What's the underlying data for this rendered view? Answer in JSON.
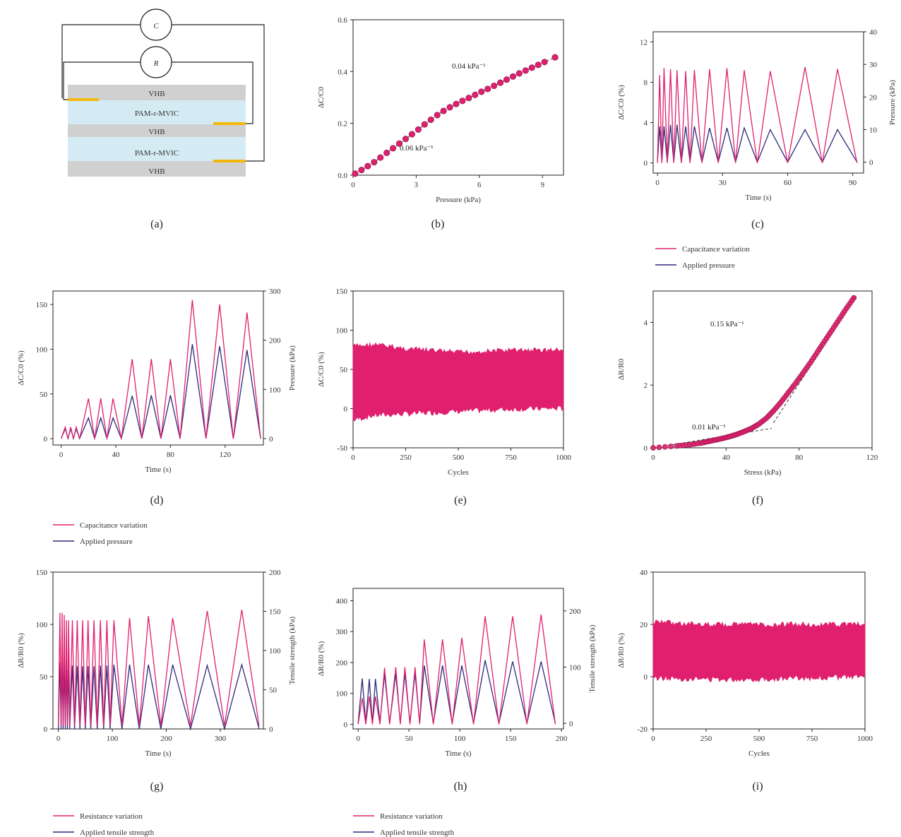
{
  "colors": {
    "magenta": "#e0206f",
    "navy": "#2b2a7a",
    "gold": "#f2b90c",
    "vhb": "#cfcfcf",
    "hydrogel": "#d4ebf4"
  },
  "schematic": {
    "meter_c": "C",
    "meter_r": "R",
    "layers": [
      "VHB",
      "PAM-r-MVIC",
      "VHB",
      "PAM-r-MVIC",
      "VHB"
    ]
  },
  "legends": {
    "c": [
      "Capacitance variation",
      "Applied pressure"
    ],
    "d": [
      "Capacitance variation",
      "Applied pressure"
    ],
    "g": [
      "Resistance variation",
      "Applied tensile strength"
    ],
    "h": [
      "Resistance variation",
      "Applied tensile strength"
    ]
  },
  "chart_data": [
    {
      "id": "a",
      "panel_label": "(a)",
      "type": "diagram"
    },
    {
      "id": "b",
      "panel_label": "(b)",
      "type": "scatter",
      "xlabel": "Pressure (kPa)",
      "ylabel": "ΔC/C0",
      "xlim": [
        0,
        10
      ],
      "ylim": [
        0,
        0.6
      ],
      "xticks": [
        0,
        3,
        6,
        9
      ],
      "yticks": [
        0.0,
        0.2,
        0.4,
        0.6
      ],
      "x": [
        0.1,
        0.4,
        0.7,
        1.0,
        1.3,
        1.6,
        1.9,
        2.2,
        2.5,
        2.8,
        3.1,
        3.4,
        3.7,
        4.0,
        4.3,
        4.6,
        4.9,
        5.2,
        5.5,
        5.8,
        6.1,
        6.4,
        6.7,
        7.0,
        7.3,
        7.6,
        7.9,
        8.2,
        8.5,
        8.8,
        9.1,
        9.6
      ],
      "y": [
        0.006,
        0.02,
        0.035,
        0.05,
        0.068,
        0.086,
        0.104,
        0.122,
        0.14,
        0.158,
        0.176,
        0.196,
        0.214,
        0.232,
        0.248,
        0.262,
        0.275,
        0.287,
        0.298,
        0.31,
        0.322,
        0.333,
        0.345,
        0.357,
        0.369,
        0.381,
        0.393,
        0.404,
        0.415,
        0.426,
        0.437,
        0.455
      ],
      "annotations": [
        "0.04 kPa⁻¹",
        "0.06 kPa⁻¹"
      ]
    },
    {
      "id": "c",
      "panel_label": "(c)",
      "type": "line",
      "xlabel": "Time (s)",
      "ylabel": "ΔC/C0 (%)",
      "y2label": "Pressure (kPa)",
      "xlim": [
        -2,
        95
      ],
      "ylim": [
        -1,
        13
      ],
      "y2lim": [
        -3.33,
        40
      ],
      "xticks": [
        0,
        30,
        60,
        90
      ],
      "yticks": [
        0,
        4,
        8,
        12
      ],
      "y2ticks": [
        0,
        10,
        20,
        30,
        40
      ],
      "peaks_x": [
        1,
        3,
        6,
        9,
        13,
        17,
        24,
        32,
        40,
        52,
        68,
        83
      ],
      "valleys_x": [
        0,
        2,
        4.5,
        7.5,
        11,
        15,
        20.5,
        28,
        36,
        46,
        60,
        76,
        92
      ],
      "series": [
        {
          "name": "Capacitance variation",
          "axis": "left",
          "peaks_y": [
            8.7,
            9.4,
            9.3,
            9.2,
            9.1,
            9.2,
            9.3,
            9.4,
            9.2,
            9.1,
            9.5,
            9.3
          ],
          "valley_y": 0
        },
        {
          "name": "Applied pressure",
          "axis": "right",
          "peaks_y": [
            11,
            11,
            11.5,
            11.5,
            11,
            11,
            10.5,
            10.5,
            10.5,
            10,
            10,
            10
          ],
          "valley_y": 0
        }
      ]
    },
    {
      "id": "d",
      "panel_label": "(d)",
      "type": "line",
      "xlabel": "Time (s)",
      "ylabel": "ΔC/C0 (%)",
      "y2label": "Pressure (kPa)",
      "xlim": [
        -6,
        148
      ],
      "ylim": [
        -7,
        165
      ],
      "y2lim": [
        -13,
        300
      ],
      "xticks": [
        0,
        40,
        80,
        120
      ],
      "yticks": [
        0,
        50,
        100,
        150
      ],
      "y2ticks": [
        0,
        100,
        200,
        300
      ],
      "peaks_x": [
        3,
        7,
        11,
        20,
        29,
        38,
        52,
        66,
        80,
        96,
        116,
        136
      ],
      "valleys_x": [
        0,
        5,
        9,
        13.5,
        24.5,
        33.5,
        44,
        59,
        73,
        87,
        106,
        126,
        146
      ],
      "series": [
        {
          "name": "Capacitance variation",
          "axis": "left",
          "peaks_y": [
            13,
            13,
            13,
            45,
            45,
            45,
            89,
            89,
            89,
            155,
            150,
            141
          ],
          "valley_y": 0
        },
        {
          "name": "Applied pressure",
          "axis": "right",
          "peaks_y": [
            20,
            20,
            20,
            42,
            42,
            42,
            87,
            88,
            88,
            192,
            188,
            180
          ],
          "valley_y": 0
        }
      ]
    },
    {
      "id": "e",
      "panel_label": "(e)",
      "type": "area",
      "xlabel": "Cycles",
      "ylabel": "ΔC/C0 (%)",
      "xlim": [
        0,
        1000
      ],
      "ylim": [
        -50,
        150
      ],
      "xticks": [
        0,
        250,
        500,
        750,
        1000
      ],
      "yticks": [
        -50,
        0,
        50,
        100,
        150
      ],
      "upper_x": [
        0,
        100,
        250,
        500,
        750,
        1000
      ],
      "upper_y": [
        83,
        85,
        80,
        75,
        78,
        78
      ],
      "lower_x": [
        0,
        100,
        250,
        500,
        750,
        1000
      ],
      "lower_y": [
        -18,
        -12,
        -10,
        -7,
        -4,
        -3
      ]
    },
    {
      "id": "f",
      "panel_label": "(f)",
      "type": "scatter",
      "xlabel": "Stress (kPa)",
      "ylabel": "ΔR/R0",
      "xlim": [
        0,
        120
      ],
      "ylim": [
        0,
        5
      ],
      "xticks": [
        0,
        40,
        80,
        120
      ],
      "yticks": [
        0,
        2,
        4
      ],
      "x": [
        0,
        13,
        20,
        26,
        30,
        34,
        38,
        42,
        46,
        50,
        54,
        58,
        62,
        66,
        70,
        74,
        78,
        82,
        86,
        90,
        94,
        98,
        102,
        106,
        110
      ],
      "y": [
        0,
        0.06,
        0.1,
        0.15,
        0.2,
        0.25,
        0.3,
        0.36,
        0.43,
        0.52,
        0.62,
        0.76,
        0.94,
        1.18,
        1.45,
        1.75,
        2.05,
        2.37,
        2.7,
        3.05,
        3.4,
        3.75,
        4.1,
        4.45,
        4.78
      ],
      "annotations": [
        "0.15 kPa⁻¹",
        "0.01 kPa⁻¹"
      ]
    },
    {
      "id": "g",
      "panel_label": "(g)",
      "type": "line",
      "xlabel": "Time (s)",
      "ylabel": "ΔR/R0 (%)",
      "y2label": "Tensile strength (kPa)",
      "xlim": [
        -10,
        380
      ],
      "ylim": [
        0,
        150
      ],
      "y2lim": [
        0,
        200
      ],
      "xticks": [
        0,
        100,
        200,
        300
      ],
      "yticks": [
        0,
        50,
        100,
        150
      ],
      "y2ticks": [
        0,
        50,
        100,
        150,
        200
      ],
      "peaks_x": [
        3,
        7,
        11,
        15,
        19,
        26,
        35,
        45,
        55,
        66,
        78,
        90,
        103,
        132,
        167,
        212,
        276,
        340
      ],
      "valleys_x": [
        0,
        5,
        9,
        13,
        17,
        21,
        30,
        40,
        50,
        60,
        72,
        84,
        96,
        118,
        150,
        190,
        245,
        308,
        372
      ],
      "series": [
        {
          "name": "Resistance variation",
          "axis": "left",
          "peaks_y": [
            111,
            111,
            109,
            104,
            104,
            104,
            104,
            104,
            104,
            104,
            104,
            104,
            104,
            106,
            108,
            106,
            113,
            114
          ],
          "valley_y": 3
        },
        {
          "name": "Applied tensile strength",
          "axis": "right",
          "peaks_y": [
            85,
            84,
            83,
            82,
            82,
            81,
            80,
            80,
            80,
            80,
            81,
            81,
            82,
            82,
            82,
            82,
            81,
            82
          ],
          "valley_y": 0
        }
      ]
    },
    {
      "id": "h",
      "panel_label": "(h)",
      "type": "line",
      "xlabel": "Time (s)",
      "ylabel": "ΔR/R0 (%)",
      "y2label": "Tensile strength (kPa)",
      "xlim": [
        -5,
        202
      ],
      "ylim": [
        -15,
        440
      ],
      "y2lim": [
        -10,
        240
      ],
      "xticks": [
        0,
        50,
        100,
        150,
        200
      ],
      "yticks": [
        0,
        100,
        200,
        300,
        400
      ],
      "y2ticks": [
        0,
        100,
        200
      ],
      "peaks_x": [
        4,
        11,
        17,
        26,
        37,
        46,
        56,
        65,
        83,
        102,
        125,
        152,
        180
      ],
      "valleys_x": [
        0,
        7.5,
        14,
        21.5,
        31,
        41.5,
        51,
        60.5,
        74,
        92.5,
        113.5,
        138.5,
        166,
        194
      ],
      "series": [
        {
          "name": "Resistance variation",
          "axis": "left",
          "peaks_y": [
            85,
            90,
            90,
            183,
            185,
            185,
            185,
            275,
            275,
            280,
            350,
            350,
            355
          ],
          "valley_y": 0
        },
        {
          "name": "Applied tensile strength",
          "axis": "right",
          "peaks_y": [
            80,
            79,
            79,
            88,
            88,
            89,
            90,
            103,
            103,
            103,
            112,
            110,
            110
          ],
          "valley_y": 0
        }
      ]
    },
    {
      "id": "i",
      "panel_label": "(i)",
      "type": "area",
      "xlabel": "Cycles",
      "ylabel": "ΔR/R0 (%)",
      "xlim": [
        0,
        1000
      ],
      "ylim": [
        -20,
        40
      ],
      "xticks": [
        0,
        250,
        500,
        750,
        1000
      ],
      "yticks": [
        -20,
        0,
        20,
        40
      ],
      "upper_x": [
        0,
        250,
        500,
        750,
        1000
      ],
      "upper_y": [
        22,
        21,
        21,
        21,
        21
      ],
      "lower_x": [
        0,
        250,
        500,
        750,
        1000
      ],
      "lower_y": [
        -1.5,
        -2,
        -2,
        -1.5,
        -1
      ]
    }
  ]
}
